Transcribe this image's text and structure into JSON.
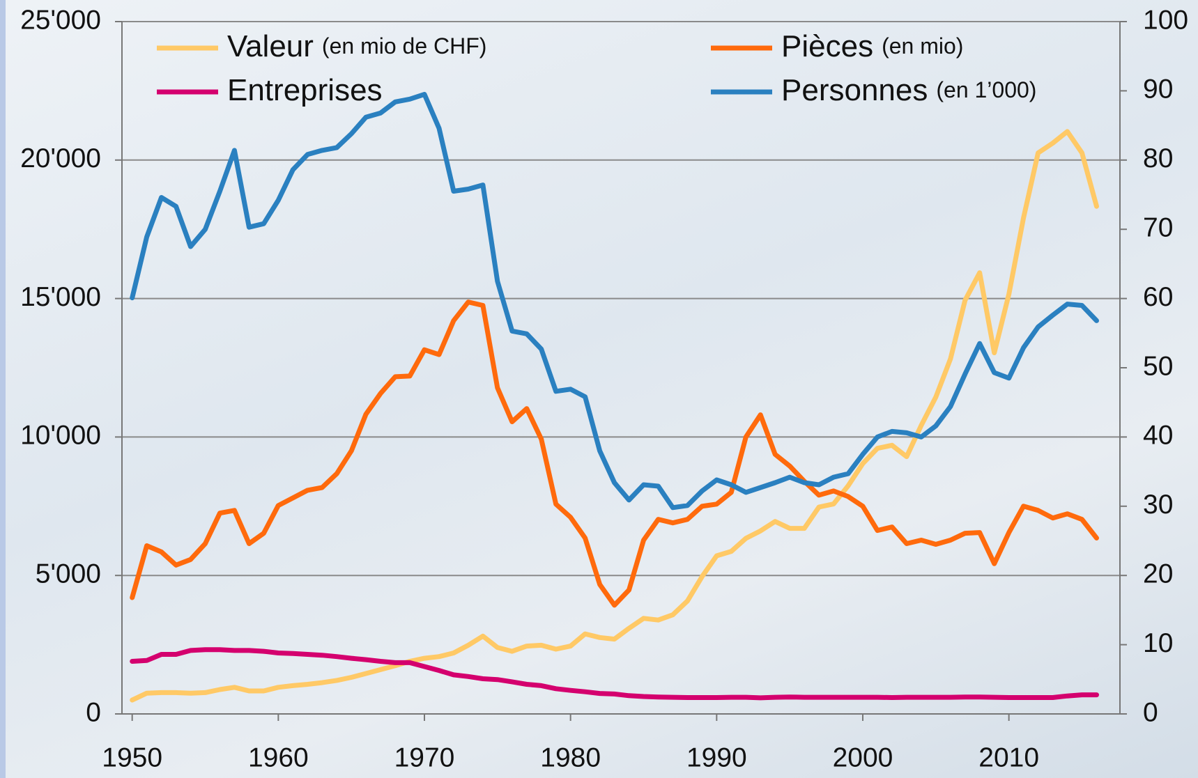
{
  "chart_data": {
    "type": "line",
    "x": [
      1950,
      1951,
      1952,
      1953,
      1954,
      1955,
      1956,
      1957,
      1958,
      1959,
      1960,
      1961,
      1962,
      1963,
      1964,
      1965,
      1966,
      1967,
      1968,
      1969,
      1970,
      1971,
      1972,
      1973,
      1974,
      1975,
      1976,
      1977,
      1978,
      1979,
      1980,
      1981,
      1982,
      1983,
      1984,
      1985,
      1986,
      1987,
      1988,
      1989,
      1990,
      1991,
      1992,
      1993,
      1994,
      1995,
      1996,
      1997,
      1998,
      1999,
      2000,
      2001,
      2002,
      2003,
      2004,
      2005,
      2006,
      2007,
      2008,
      2009,
      2010,
      2011,
      2012,
      2013,
      2014,
      2015,
      2016
    ],
    "xlim": [
      1949.3,
      2017.6
    ],
    "xticks": [
      1950,
      1960,
      1970,
      1980,
      1990,
      2000,
      2010
    ],
    "ylim": [
      0,
      25000
    ],
    "yticks": [
      {
        "value": 0,
        "label": "0"
      },
      {
        "value": 5000,
        "label": "5'000"
      },
      {
        "value": 10000,
        "label": "10'000"
      },
      {
        "value": 15000,
        "label": "15'000"
      },
      {
        "value": 20000,
        "label": "20'000"
      },
      {
        "value": 25000,
        "label": "25'000"
      }
    ],
    "y2lim": [
      0,
      100
    ],
    "y2ticks": [
      0,
      10,
      20,
      30,
      40,
      50,
      60,
      70,
      80,
      90,
      100
    ],
    "grid": true,
    "series": [
      {
        "name": "Valeur",
        "unit": "(en mio de CHF)",
        "color": "#ffc966",
        "values": [
          500,
          750,
          770,
          770,
          750,
          770,
          880,
          960,
          830,
          830,
          960,
          1020,
          1070,
          1130,
          1210,
          1320,
          1460,
          1600,
          1740,
          1900,
          2010,
          2070,
          2200,
          2480,
          2810,
          2400,
          2260,
          2450,
          2480,
          2340,
          2450,
          2890,
          2760,
          2700,
          3090,
          3450,
          3390,
          3580,
          4080,
          4960,
          5710,
          5870,
          6340,
          6610,
          6950,
          6700,
          6700,
          7470,
          7580,
          8240,
          9040,
          9590,
          9700,
          9290,
          10420,
          11440,
          12820,
          14940,
          15930,
          13040,
          15160,
          17910,
          20260,
          20610,
          21030,
          20260,
          18330
        ]
      },
      {
        "name": "Pièces",
        "unit": "(en mio)",
        "color": "#ff6a0c",
        "axis": "y2",
        "values": [
          16.8,
          24.3,
          23.4,
          21.5,
          22.3,
          24.6,
          29.0,
          29.4,
          24.6,
          26.1,
          30.1,
          31.2,
          32.3,
          32.7,
          34.7,
          38.0,
          43.3,
          46.3,
          48.7,
          48.8,
          52.6,
          51.9,
          56.8,
          59.5,
          59.0,
          47.1,
          42.2,
          44.1,
          39.7,
          30.3,
          28.4,
          25.4,
          18.7,
          15.7,
          17.9,
          25.1,
          28.1,
          27.6,
          28.1,
          30.0,
          30.3,
          32.0,
          40.0,
          43.2,
          37.5,
          35.8,
          33.6,
          31.6,
          32.2,
          31.4,
          30.0,
          26.5,
          27.0,
          24.6,
          25.1,
          24.5,
          25.1,
          26.1,
          26.2,
          21.7,
          26.2,
          30.0,
          29.4,
          28.3,
          28.9,
          28.1,
          25.4
        ]
      },
      {
        "name": "Entreprises",
        "color": "#d4006e",
        "values": [
          1900,
          1930,
          2150,
          2150,
          2290,
          2320,
          2320,
          2290,
          2290,
          2260,
          2200,
          2180,
          2150,
          2120,
          2070,
          2010,
          1960,
          1900,
          1850,
          1850,
          1710,
          1570,
          1410,
          1350,
          1270,
          1240,
          1160,
          1070,
          1020,
          910,
          850,
          800,
          740,
          720,
          660,
          630,
          610,
          600,
          590,
          590,
          590,
          600,
          600,
          580,
          600,
          610,
          600,
          600,
          600,
          600,
          600,
          600,
          590,
          600,
          600,
          600,
          600,
          610,
          610,
          600,
          590,
          590,
          590,
          590,
          650,
          690,
          690
        ]
      },
      {
        "name": "Personnes",
        "unit": "(en 1’000)",
        "color": "#2a80c0",
        "axis": "y2",
        "values": [
          60.1,
          68.9,
          74.6,
          73.3,
          67.5,
          70.0,
          75.5,
          81.4,
          70.3,
          70.8,
          74.2,
          78.6,
          80.8,
          81.4,
          81.8,
          83.8,
          86.2,
          86.8,
          88.4,
          88.8,
          89.5,
          84.6,
          75.5,
          75.8,
          76.4,
          62.5,
          55.3,
          54.9,
          52.7,
          46.6,
          46.9,
          45.8,
          38.0,
          33.4,
          30.9,
          33.1,
          32.9,
          29.8,
          30.1,
          32.2,
          33.8,
          33.1,
          32.0,
          32.7,
          33.4,
          34.2,
          33.4,
          33.1,
          34.2,
          34.7,
          37.5,
          40.0,
          40.8,
          40.6,
          40.0,
          41.6,
          44.4,
          49.1,
          53.5,
          49.3,
          48.5,
          52.9,
          55.9,
          57.6,
          59.2,
          59.0,
          56.8
        ]
      }
    ]
  }
}
